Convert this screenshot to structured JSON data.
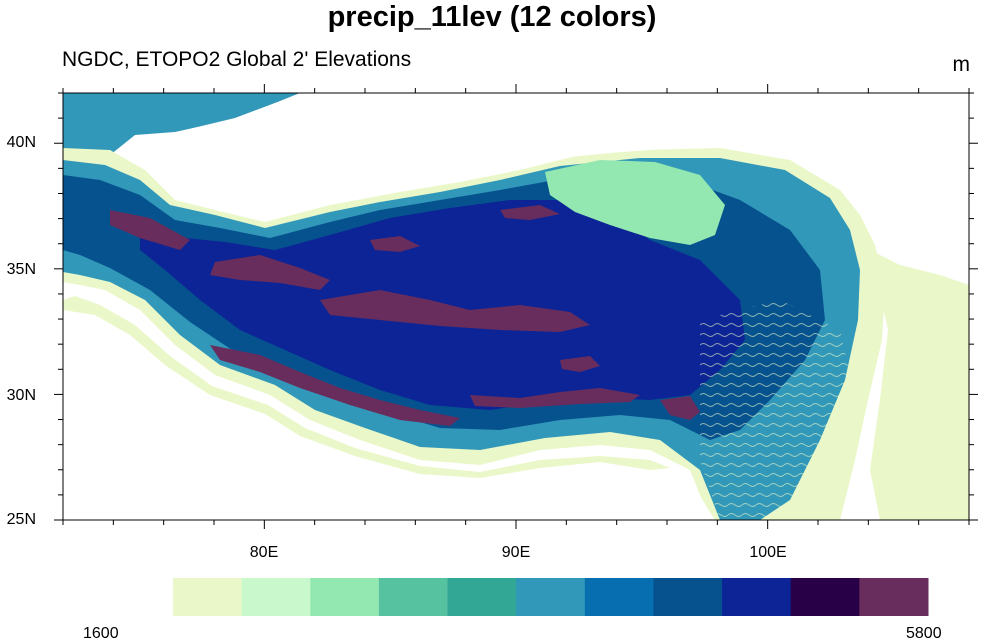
{
  "title": "precip_11lev (12 colors)",
  "subtitle": "NGDC, ETOPO2 Global 2' Elevations",
  "units": "m",
  "lat_labels": [
    "40N",
    "35N",
    "30N",
    "25N"
  ],
  "lon_labels": [
    "80E",
    "90E",
    "100E"
  ],
  "colorbar": {
    "min_label": "1600",
    "max_label": "5800",
    "colors": [
      "#eaf7c8",
      "#c8f8cc",
      "#93e8b1",
      "#56c2a0",
      "#32a795",
      "#3298b9",
      "#076fb0",
      "#06528f",
      "#0c2496",
      "#270047",
      "#682d5c"
    ]
  },
  "map_colors": {
    "water": "#ffffff",
    "low": "#eaf7c8",
    "basin": "#93e8b1",
    "mid": "#3298b9",
    "high": "#06528f",
    "plateau": "#0c2496",
    "peaks": "#682d5c"
  }
}
